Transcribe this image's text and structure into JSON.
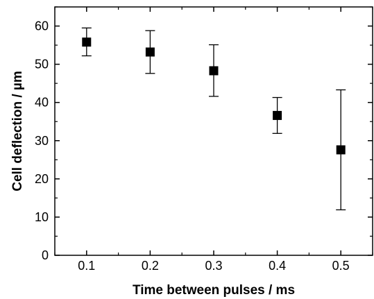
{
  "chart_data": {
    "type": "scatter",
    "xlabel": "Time between pulses / ms",
    "ylabel": "Cell deflection / µm",
    "xlim": [
      0.05,
      0.55
    ],
    "ylim": [
      0,
      65
    ],
    "x_ticks": [
      0.1,
      0.2,
      0.3,
      0.4,
      0.5
    ],
    "x_tick_labels": [
      "0.1",
      "0.2",
      "0.3",
      "0.4",
      "0.5"
    ],
    "y_ticks": [
      0,
      10,
      20,
      30,
      40,
      50,
      60
    ],
    "y_tick_labels": [
      "0",
      "10",
      "20",
      "30",
      "40",
      "50",
      "60"
    ],
    "grid": false,
    "marker": "square",
    "color": "#000000",
    "points": [
      {
        "x": 0.1,
        "y": 55.8,
        "y_low": 52.2,
        "y_high": 59.5
      },
      {
        "x": 0.2,
        "y": 53.2,
        "y_low": 47.6,
        "y_high": 58.8
      },
      {
        "x": 0.3,
        "y": 48.3,
        "y_low": 41.6,
        "y_high": 55.1
      },
      {
        "x": 0.4,
        "y": 36.6,
        "y_low": 31.9,
        "y_high": 41.3
      },
      {
        "x": 0.5,
        "y": 27.6,
        "y_low": 11.9,
        "y_high": 43.3
      }
    ]
  }
}
